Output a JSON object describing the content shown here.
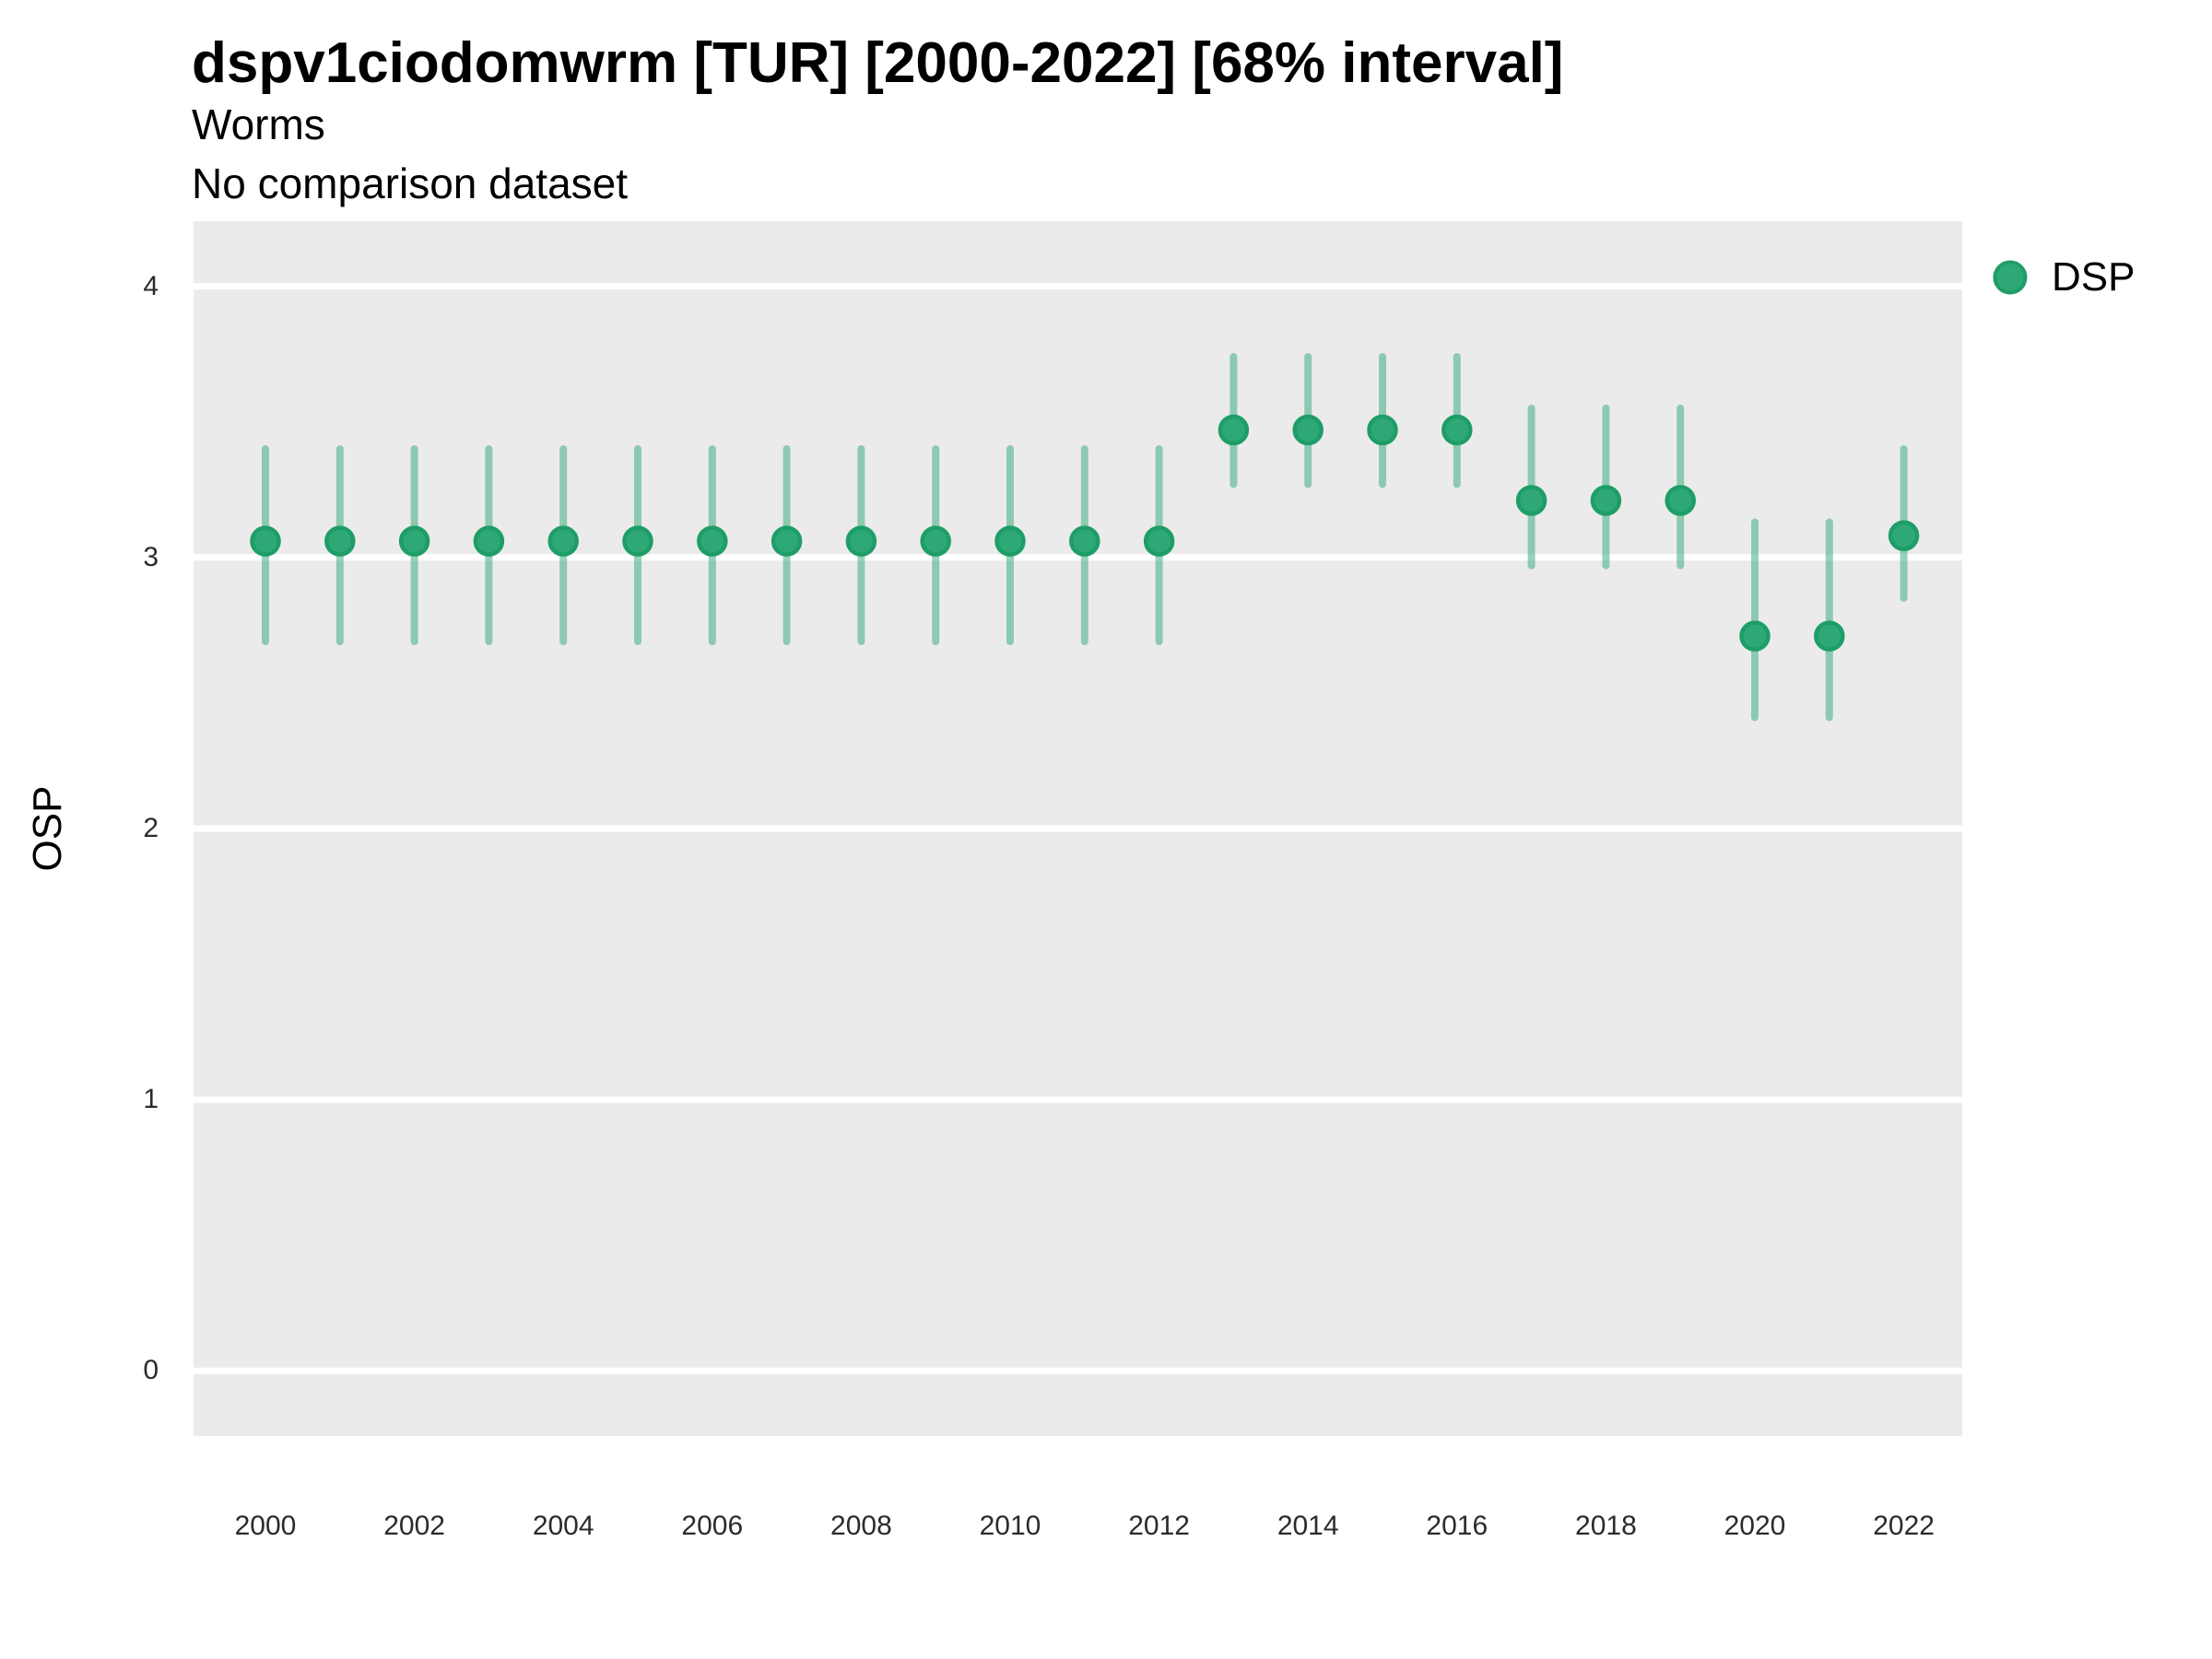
{
  "header": {
    "title": "dspv1ciodomwrm [TUR] [2000-2022] [68% interval]",
    "subtitle": "Worms",
    "comparison_note": "No comparison dataset"
  },
  "colors": {
    "point_fill": "#2FA878",
    "point_stroke": "#1E9E67",
    "interval": "#2FA878",
    "panel_background": "#EBEBEB",
    "gridline": "#FFFFFF",
    "title_text": "#000000",
    "tick_text": "#2B2B2B"
  },
  "chart_data": {
    "type": "scatter",
    "title": "dspv1ciodomwrm [TUR] [2000-2022] [68% interval]",
    "subtitle": "Worms",
    "note": "No comparison dataset",
    "xlabel": "",
    "ylabel": "OSP",
    "ylim": [
      0,
      4
    ],
    "y_expand": 0.24,
    "xlim": [
      2000,
      2022
    ],
    "yticks": [
      0,
      1,
      2,
      3,
      4
    ],
    "xticks": [
      2000,
      2002,
      2004,
      2006,
      2008,
      2010,
      2012,
      2014,
      2016,
      2018,
      2020,
      2022
    ],
    "grid": "horizontal-major-only",
    "legend_position": "right-top",
    "interval_label": "68% interval",
    "series": [
      {
        "name": "DSP",
        "points": [
          {
            "x": 2000,
            "y": 3.06,
            "lo": 2.69,
            "hi": 3.4
          },
          {
            "x": 2001,
            "y": 3.06,
            "lo": 2.69,
            "hi": 3.4
          },
          {
            "x": 2002,
            "y": 3.06,
            "lo": 2.69,
            "hi": 3.4
          },
          {
            "x": 2003,
            "y": 3.06,
            "lo": 2.69,
            "hi": 3.4
          },
          {
            "x": 2004,
            "y": 3.06,
            "lo": 2.69,
            "hi": 3.4
          },
          {
            "x": 2005,
            "y": 3.06,
            "lo": 2.69,
            "hi": 3.4
          },
          {
            "x": 2006,
            "y": 3.06,
            "lo": 2.69,
            "hi": 3.4
          },
          {
            "x": 2007,
            "y": 3.06,
            "lo": 2.69,
            "hi": 3.4
          },
          {
            "x": 2008,
            "y": 3.06,
            "lo": 2.69,
            "hi": 3.4
          },
          {
            "x": 2009,
            "y": 3.06,
            "lo": 2.69,
            "hi": 3.4
          },
          {
            "x": 2010,
            "y": 3.06,
            "lo": 2.69,
            "hi": 3.4
          },
          {
            "x": 2011,
            "y": 3.06,
            "lo": 2.69,
            "hi": 3.4
          },
          {
            "x": 2012,
            "y": 3.06,
            "lo": 2.69,
            "hi": 3.4
          },
          {
            "x": 2013,
            "y": 3.47,
            "lo": 3.27,
            "hi": 3.74
          },
          {
            "x": 2014,
            "y": 3.47,
            "lo": 3.27,
            "hi": 3.74
          },
          {
            "x": 2015,
            "y": 3.47,
            "lo": 3.27,
            "hi": 3.74
          },
          {
            "x": 2016,
            "y": 3.47,
            "lo": 3.27,
            "hi": 3.74
          },
          {
            "x": 2017,
            "y": 3.21,
            "lo": 2.97,
            "hi": 3.55
          },
          {
            "x": 2018,
            "y": 3.21,
            "lo": 2.97,
            "hi": 3.55
          },
          {
            "x": 2019,
            "y": 3.21,
            "lo": 2.97,
            "hi": 3.55
          },
          {
            "x": 2020,
            "y": 2.71,
            "lo": 2.41,
            "hi": 3.13
          },
          {
            "x": 2021,
            "y": 2.71,
            "lo": 2.41,
            "hi": 3.13
          },
          {
            "x": 2022,
            "y": 3.08,
            "lo": 2.85,
            "hi": 3.4
          }
        ]
      }
    ]
  }
}
